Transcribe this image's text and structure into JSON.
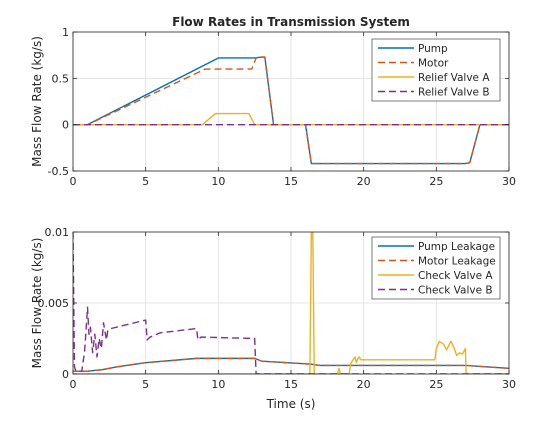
{
  "figure": {
    "background": "#ffffff"
  },
  "chart_data": [
    {
      "type": "line",
      "title": "Flow Rates in Transmission System",
      "xlabel": "",
      "ylabel": "Mass Flow Rate (kg/s)",
      "xlim": [
        0,
        30
      ],
      "ylim": [
        -0.5,
        1
      ],
      "xticks": [
        0,
        5,
        10,
        15,
        20,
        25,
        30
      ],
      "xtick_labels": [
        "0",
        "5",
        "10",
        "15",
        "20",
        "25",
        "30"
      ],
      "yticks": [
        -0.5,
        0,
        0.5,
        1
      ],
      "ytick_labels": [
        "-0.5",
        "0",
        "0.5",
        "1"
      ],
      "grid": true,
      "legend_position": "top-right",
      "series": [
        {
          "name": "Pump",
          "color": "#0072BD",
          "dash": "solid",
          "x": [
            0,
            1,
            10,
            12.5,
            13,
            13.2,
            13.8,
            14,
            16,
            16.4,
            17,
            27,
            27.3,
            28,
            30
          ],
          "y": [
            0,
            0,
            0.72,
            0.72,
            0.73,
            0.73,
            0,
            0,
            0,
            -0.42,
            -0.42,
            -0.42,
            -0.41,
            0,
            0
          ]
        },
        {
          "name": "Motor",
          "color": "#D95319",
          "dash": "dashed",
          "x": [
            0,
            1,
            9.1,
            12.3,
            12.6,
            13,
            13.2,
            13.8,
            14,
            16,
            16.4,
            17,
            27,
            27.3,
            28,
            30
          ],
          "y": [
            0,
            0,
            0.6,
            0.6,
            0.72,
            0.73,
            0.73,
            0,
            0,
            0,
            -0.42,
            -0.42,
            -0.42,
            -0.41,
            0,
            0
          ]
        },
        {
          "name": "Relief Valve A",
          "color": "#EDB120",
          "dash": "solid",
          "x": [
            0,
            8.9,
            9.8,
            12.1,
            12.5,
            30
          ],
          "y": [
            0,
            0,
            0.12,
            0.12,
            0,
            0
          ]
        },
        {
          "name": "Relief Valve B",
          "color": "#7E2F8E",
          "dash": "dashed",
          "x": [
            0,
            30
          ],
          "y": [
            0,
            0
          ]
        }
      ]
    },
    {
      "type": "line",
      "title": "",
      "xlabel": "Time (s)",
      "ylabel": "Mass Flow Rate (kg/s)",
      "xlim": [
        0,
        30
      ],
      "ylim": [
        0,
        0.01
      ],
      "xticks": [
        0,
        5,
        10,
        15,
        20,
        25,
        30
      ],
      "xtick_labels": [
        "0",
        "5",
        "10",
        "15",
        "20",
        "25",
        "30"
      ],
      "yticks": [
        0,
        0.005,
        0.01
      ],
      "ytick_labels": [
        "0",
        "0.005",
        "0.01"
      ],
      "grid": true,
      "legend_position": "top-right",
      "series": [
        {
          "name": "Pump Leakage",
          "color": "#0072BD",
          "dash": "solid",
          "x": [
            0,
            1,
            2,
            3,
            5,
            8.5,
            12.5,
            13,
            16.3,
            17,
            25,
            27,
            30
          ],
          "y": [
            0.0002,
            0.0002,
            0.0003,
            0.0005,
            0.0008,
            0.0011,
            0.0011,
            0.0009,
            0.0007,
            0.0006,
            0.0006,
            0.0006,
            0.0004
          ]
        },
        {
          "name": "Motor Leakage",
          "color": "#D95319",
          "dash": "dashed",
          "x": [
            0,
            1,
            2,
            3,
            5,
            8.5,
            12.5,
            13,
            16.3,
            17,
            25,
            27,
            30
          ],
          "y": [
            0.0002,
            0.0002,
            0.0003,
            0.0005,
            0.0008,
            0.0011,
            0.0011,
            0.0009,
            0.0007,
            0.0006,
            0.0006,
            0.0006,
            0.0004
          ]
        },
        {
          "name": "Check Valve A",
          "color": "#EDB120",
          "dash": "solid",
          "x": [
            0,
            16.3,
            16.4,
            16.5,
            16.6,
            16.7,
            18.2,
            18.3,
            18.4,
            19,
            19.1,
            19.2,
            19.4,
            19.5,
            19.6,
            19.7,
            19.8,
            20,
            24.9,
            25,
            25.2,
            25.5,
            25.7,
            26,
            26.2,
            26.4,
            26.6,
            26.8,
            27,
            27.05,
            30
          ],
          "y": [
            0,
            0,
            0.01,
            0.01,
            0,
            0,
            0,
            0.0004,
            0,
            0,
            0.0007,
            0.0009,
            0.0012,
            0.0008,
            0.0011,
            0.0012,
            0.001,
            0.001,
            0.001,
            0.0018,
            0.0023,
            0.0021,
            0.0017,
            0.0023,
            0.0019,
            0.0013,
            0.0015,
            0.0014,
            0.0018,
            0,
            0
          ]
        },
        {
          "name": "Check Valve B",
          "color": "#7E2F8E",
          "dash": "dashed",
          "x": [
            0,
            0.1,
            0.2,
            0.6,
            0.8,
            1.0,
            1.1,
            1.2,
            1.35,
            1.5,
            1.65,
            1.8,
            1.95,
            2.1,
            2.3,
            2.4,
            2.6,
            3,
            5,
            5.1,
            5.3,
            6,
            8.5,
            8.6,
            8.8,
            12.5,
            12.6,
            30
          ],
          "y": [
            0.01,
            0.0005,
            0.0002,
            0.0002,
            0.0016,
            0.0047,
            0.0028,
            0.0033,
            0.0015,
            0.0028,
            0.0012,
            0.0025,
            0.0018,
            0.0036,
            0.0024,
            0.0031,
            0.0032,
            0.0033,
            0.0038,
            0.0024,
            0.0026,
            0.0029,
            0.0032,
            0.0024,
            0.0026,
            0.0025,
            0,
            0
          ]
        }
      ]
    }
  ]
}
